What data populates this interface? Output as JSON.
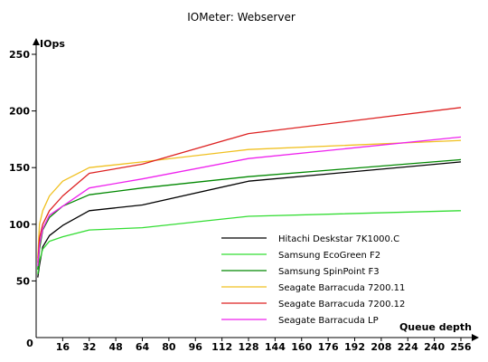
{
  "chart_data": {
    "type": "line",
    "title": "IOMeter: Webserver",
    "ylabel": "IOps",
    "xlabel": "Queue depth",
    "ylim": [
      0,
      250
    ],
    "xlim": [
      0,
      256
    ],
    "yticks": [
      0,
      50,
      100,
      150,
      200,
      250
    ],
    "xticks": [
      0,
      16,
      32,
      48,
      64,
      80,
      96,
      112,
      128,
      144,
      160,
      176,
      192,
      208,
      224,
      240,
      256
    ],
    "grid": false,
    "legend_position": "bottom-right",
    "x": [
      1,
      2,
      4,
      8,
      16,
      32,
      64,
      128,
      256
    ],
    "series": [
      {
        "name": "Hitachi Deskstar 7K1000.C",
        "color": "#000000",
        "values": [
          53,
          64,
          80,
          90,
          99,
          112,
          117,
          138,
          155
        ]
      },
      {
        "name": "Samsung EcoGreen F2",
        "color": "#33dd33",
        "values": [
          56,
          68,
          78,
          85,
          89,
          95,
          97,
          107,
          112
        ]
      },
      {
        "name": "Samsung SpinPoint F3",
        "color": "#008800",
        "values": [
          60,
          78,
          95,
          106,
          116,
          126,
          132,
          142,
          157
        ]
      },
      {
        "name": "Seagate Barracuda 7200.11",
        "color": "#f0c020",
        "values": [
          70,
          100,
          112,
          125,
          138,
          150,
          155,
          166,
          174
        ]
      },
      {
        "name": "Seagate Barracuda 7200.12",
        "color": "#dd2222",
        "values": [
          66,
          88,
          100,
          112,
          125,
          145,
          153,
          180,
          203
        ]
      },
      {
        "name": "Seagate Barracuda LP",
        "color": "#ee22ee",
        "values": [
          63,
          82,
          96,
          108,
          116,
          132,
          140,
          158,
          177
        ]
      }
    ]
  }
}
